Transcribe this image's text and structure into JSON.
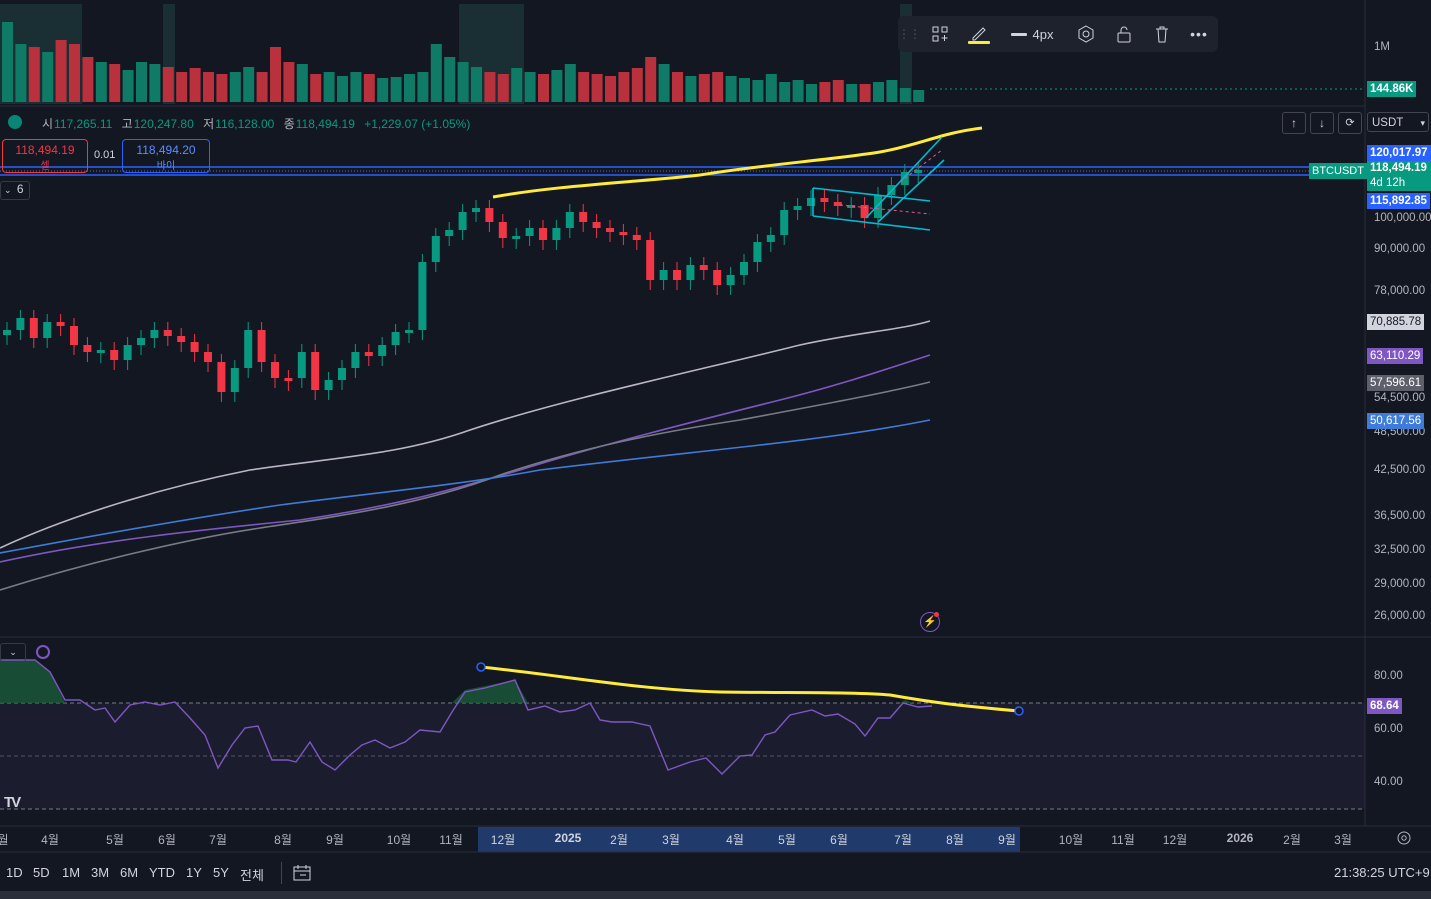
{
  "symbol_legend": {
    "open_label": "시",
    "open": "117,265.11",
    "high_label": "고",
    "high": "120,247.80",
    "low_label": "저",
    "low": "116,128.00",
    "close_label": "종",
    "close": "118,494.19",
    "change": "+1,229.07 (+1.05%)"
  },
  "trade": {
    "sell_price": "118,494.19",
    "sell_label": "셀",
    "spread": "0.01",
    "buy_price": "118,494.20",
    "buy_label": "바이"
  },
  "indicators_count": "6",
  "toolbar": {
    "width_label": "4px",
    "icons": [
      "drag-handle-icon",
      "template-icon",
      "pencil-icon",
      "line-width-icon",
      "settings-icon",
      "lock-icon",
      "trash-icon",
      "more-icon"
    ]
  },
  "volume": {
    "scale_label": "1M",
    "current": "144.86K"
  },
  "currency": "USDT",
  "price_axis": {
    "labels": [
      "100,000.00",
      "90,000.00",
      "78,000.00",
      "54,500.00",
      "48,500.00",
      "42,500.00",
      "36,500.00",
      "32,500.00",
      "29,000.00",
      "26,000.00"
    ],
    "tags": {
      "symbol": "BTCUSDT",
      "high_line": "120,017.97",
      "last": "118,494.19",
      "countdown": "4d 12h",
      "low_line": "115,892.85",
      "ma1": "70,885.78",
      "ma2": "63,110.29",
      "ma3": "57,596.61",
      "ma4": "50,617.56"
    }
  },
  "rsi": {
    "labels": [
      "80.00",
      "60.00",
      "40.00"
    ],
    "current": "68.64"
  },
  "time_axis": [
    "월",
    "4월",
    "5월",
    "6월",
    "7월",
    "8월",
    "9월",
    "10월",
    "11월",
    "12월",
    "2025",
    "2월",
    "3월",
    "4월",
    "5월",
    "6월",
    "7월",
    "8월",
    "9월",
    "10월",
    "11월",
    "12월",
    "2026",
    "2월",
    "3월"
  ],
  "ranges": [
    "1D",
    "5D",
    "1M",
    "3M",
    "6M",
    "YTD",
    "1Y",
    "5Y",
    "전체"
  ],
  "clock": "21:38:25 UTC+9",
  "colors": {
    "up": "#089981",
    "down": "#f23645",
    "drawing_yellow": "#ffeb3b",
    "channel_cyan": "#00bcd4",
    "hline_blue": "#2962ff",
    "ma_white": "#b9b6c8",
    "ma_purple": "#7e57c2",
    "ma_gray": "#787b86",
    "ma_blue": "#3f7bd9"
  }
}
